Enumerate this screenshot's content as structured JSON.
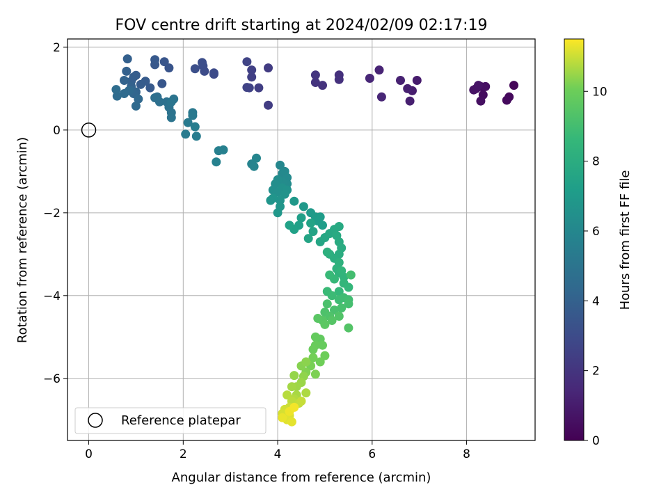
{
  "chart_data": {
    "type": "scatter",
    "title": "FOV centre drift starting at 2024/02/09 02:17:19",
    "xlabel": "Angular distance from reference (arcmin)",
    "ylabel": "Rotation from reference (arcmin)",
    "xlim": [
      -0.45,
      9.45
    ],
    "ylim": [
      -7.5,
      2.2
    ],
    "xticks": [
      0,
      2,
      4,
      6,
      8
    ],
    "yticks": [
      -6,
      -4,
      -2,
      0,
      2
    ],
    "xtick_labels": [
      "0",
      "2",
      "4",
      "6",
      "8"
    ],
    "ytick_labels": [
      "−6",
      "−4",
      "−2",
      "0",
      "2"
    ],
    "grid": true,
    "colormap": "viridis",
    "colorbar": {
      "label": "Hours from first FF file",
      "range": [
        0,
        11.5
      ],
      "ticks": [
        0,
        2,
        4,
        6,
        8,
        10
      ],
      "tick_labels": [
        "0",
        "2",
        "4",
        "6",
        "8",
        "10"
      ]
    },
    "legend": {
      "position": "lower-left",
      "entries": [
        "Reference platepar"
      ]
    },
    "reference_point": {
      "x": 0,
      "y": 0,
      "marker": "open-circle"
    },
    "points": [
      [
        9.0,
        1.08,
        0.2
      ],
      [
        8.9,
        0.8,
        0.3
      ],
      [
        8.85,
        0.72,
        0.35
      ],
      [
        8.3,
        1.05,
        0.4
      ],
      [
        8.35,
        0.85,
        0.45
      ],
      [
        8.3,
        0.7,
        0.5
      ],
      [
        8.4,
        1.05,
        0.55
      ],
      [
        8.2,
        1.0,
        0.6
      ],
      [
        8.15,
        0.97,
        0.65
      ],
      [
        8.25,
        1.08,
        0.7
      ],
      [
        6.95,
        1.2,
        1.0
      ],
      [
        6.85,
        0.95,
        1.05
      ],
      [
        6.8,
        0.7,
        1.1
      ],
      [
        6.75,
        1.0,
        1.15
      ],
      [
        6.6,
        1.2,
        1.2
      ],
      [
        6.15,
        1.45,
        1.3
      ],
      [
        6.2,
        0.8,
        1.35
      ],
      [
        5.95,
        1.25,
        1.4
      ],
      [
        5.3,
        1.33,
        1.8
      ],
      [
        5.3,
        1.22,
        1.85
      ],
      [
        4.95,
        1.08,
        1.9
      ],
      [
        4.8,
        1.15,
        1.95
      ],
      [
        4.8,
        1.33,
        2.0
      ],
      [
        3.8,
        1.5,
        2.3
      ],
      [
        3.8,
        0.6,
        2.35
      ],
      [
        3.6,
        1.02,
        2.4
      ],
      [
        3.45,
        1.28,
        2.45
      ],
      [
        3.45,
        1.45,
        2.5
      ],
      [
        3.4,
        1.02,
        2.55
      ],
      [
        3.35,
        1.03,
        2.6
      ],
      [
        3.35,
        1.65,
        2.65
      ],
      [
        2.65,
        1.35,
        2.9
      ],
      [
        2.65,
        1.38,
        2.95
      ],
      [
        2.45,
        1.42,
        3.0
      ],
      [
        2.42,
        1.55,
        3.05
      ],
      [
        2.4,
        1.63,
        3.1
      ],
      [
        2.25,
        1.48,
        3.15
      ],
      [
        1.7,
        1.5,
        3.4
      ],
      [
        1.6,
        1.65,
        3.45
      ],
      [
        1.55,
        1.12,
        3.5
      ],
      [
        1.4,
        1.58,
        3.55
      ],
      [
        1.4,
        1.7,
        3.6
      ],
      [
        1.3,
        1.02,
        3.65
      ],
      [
        1.2,
        1.18,
        3.7
      ],
      [
        1.1,
        1.1,
        3.75
      ],
      [
        1.0,
        1.32,
        3.8
      ],
      [
        0.95,
        1.28,
        3.85
      ],
      [
        0.9,
        1.18,
        3.9
      ],
      [
        0.82,
        1.72,
        3.95
      ],
      [
        0.8,
        1.42,
        4.0
      ],
      [
        0.9,
        1.05,
        4.05
      ],
      [
        0.75,
        1.2,
        4.1
      ],
      [
        1.0,
        0.92,
        4.15
      ],
      [
        0.95,
        0.88,
        4.2
      ],
      [
        0.9,
        0.95,
        4.25
      ],
      [
        1.05,
        0.75,
        4.35
      ],
      [
        1.0,
        0.58,
        4.4
      ],
      [
        0.85,
        0.95,
        4.45
      ],
      [
        0.75,
        0.88,
        4.5
      ],
      [
        0.6,
        0.82,
        4.55
      ],
      [
        0.58,
        0.98,
        4.6
      ],
      [
        1.45,
        0.8,
        4.65
      ],
      [
        1.4,
        0.78,
        4.7
      ],
      [
        1.5,
        0.68,
        4.75
      ],
      [
        1.65,
        0.68,
        4.8
      ],
      [
        1.7,
        0.55,
        4.85
      ],
      [
        1.75,
        0.42,
        4.9
      ],
      [
        1.75,
        0.3,
        4.95
      ],
      [
        1.8,
        0.75,
        5.0
      ],
      [
        1.75,
        0.68,
        5.05
      ],
      [
        2.2,
        0.42,
        5.2
      ],
      [
        2.2,
        0.35,
        5.25
      ],
      [
        2.1,
        0.18,
        5.3
      ],
      [
        2.05,
        -0.1,
        5.35
      ],
      [
        2.28,
        -0.15,
        5.4
      ],
      [
        2.25,
        0.08,
        5.45
      ],
      [
        2.75,
        -0.5,
        5.6
      ],
      [
        2.85,
        -0.48,
        5.65
      ],
      [
        2.7,
        -0.77,
        5.7
      ],
      [
        3.45,
        -0.82,
        5.8
      ],
      [
        3.5,
        -0.88,
        5.85
      ],
      [
        3.55,
        -0.68,
        5.9
      ],
      [
        4.05,
        -0.85,
        6.0
      ],
      [
        4.1,
        -1.05,
        6.05
      ],
      [
        4.15,
        -1.0,
        6.1
      ],
      [
        4.2,
        -1.15,
        6.15
      ],
      [
        4.2,
        -1.3,
        6.2
      ],
      [
        4.1,
        -1.25,
        6.25
      ],
      [
        4.0,
        -1.2,
        6.3
      ],
      [
        3.95,
        -1.3,
        6.35
      ],
      [
        3.9,
        -1.45,
        6.4
      ],
      [
        4.0,
        -1.5,
        6.45
      ],
      [
        4.1,
        -1.4,
        6.5
      ],
      [
        4.2,
        -1.45,
        6.55
      ],
      [
        4.15,
        -1.55,
        6.6
      ],
      [
        4.05,
        -1.7,
        6.65
      ],
      [
        3.9,
        -1.65,
        6.7
      ],
      [
        3.85,
        -1.7,
        6.75
      ],
      [
        4.05,
        -1.85,
        6.8
      ],
      [
        4.0,
        -2.0,
        6.85
      ],
      [
        4.35,
        -1.72,
        6.9
      ],
      [
        4.55,
        -1.85,
        6.95
      ],
      [
        4.7,
        -2.0,
        7.0
      ],
      [
        4.8,
        -2.1,
        7.05
      ],
      [
        4.9,
        -2.1,
        7.1
      ],
      [
        4.85,
        -2.2,
        7.15
      ],
      [
        4.95,
        -2.3,
        7.2
      ],
      [
        4.5,
        -2.12,
        7.25
      ],
      [
        4.45,
        -2.3,
        7.3
      ],
      [
        4.35,
        -2.4,
        7.35
      ],
      [
        4.25,
        -2.3,
        7.4
      ],
      [
        4.7,
        -2.25,
        7.45
      ],
      [
        4.75,
        -2.45,
        7.5
      ],
      [
        4.65,
        -2.62,
        7.55
      ],
      [
        4.9,
        -2.7,
        7.6
      ],
      [
        5.0,
        -2.6,
        7.65
      ],
      [
        5.1,
        -2.5,
        7.7
      ],
      [
        5.2,
        -2.4,
        7.75
      ],
      [
        5.3,
        -2.33,
        7.8
      ],
      [
        5.25,
        -2.55,
        7.85
      ],
      [
        5.3,
        -2.7,
        7.9
      ],
      [
        5.35,
        -2.85,
        7.95
      ],
      [
        5.3,
        -3.0,
        8.0
      ],
      [
        5.2,
        -3.1,
        8.05
      ],
      [
        5.1,
        -3.0,
        8.1
      ],
      [
        5.05,
        -2.95,
        8.15
      ],
      [
        5.3,
        -3.2,
        8.25
      ],
      [
        5.25,
        -3.35,
        8.3
      ],
      [
        5.3,
        -3.45,
        8.35
      ],
      [
        5.4,
        -3.55,
        8.4
      ],
      [
        5.35,
        -3.4,
        8.45
      ],
      [
        5.4,
        -3.7,
        8.5
      ],
      [
        5.5,
        -3.8,
        8.55
      ],
      [
        5.3,
        -3.9,
        8.6
      ],
      [
        5.2,
        -3.6,
        8.65
      ],
      [
        5.1,
        -3.5,
        8.7
      ],
      [
        5.05,
        -3.9,
        8.75
      ],
      [
        5.15,
        -4.0,
        8.8
      ],
      [
        5.3,
        -4.1,
        8.85
      ],
      [
        5.4,
        -4.05,
        8.9
      ],
      [
        5.5,
        -4.1,
        8.95
      ],
      [
        5.55,
        -3.5,
        9.0
      ],
      [
        5.5,
        -4.2,
        9.05
      ],
      [
        5.35,
        -4.3,
        9.1
      ],
      [
        5.2,
        -4.35,
        9.15
      ],
      [
        5.05,
        -4.2,
        9.2
      ],
      [
        5.0,
        -4.4,
        9.25
      ],
      [
        5.1,
        -4.5,
        9.3
      ],
      [
        5.3,
        -4.5,
        9.35
      ],
      [
        5.5,
        -4.78,
        9.4
      ],
      [
        5.15,
        -4.6,
        9.45
      ],
      [
        4.95,
        -4.6,
        9.5
      ],
      [
        4.85,
        -4.55,
        9.55
      ],
      [
        5.0,
        -4.7,
        9.6
      ],
      [
        4.9,
        -5.05,
        9.75
      ],
      [
        4.8,
        -5.0,
        9.8
      ],
      [
        4.95,
        -5.2,
        9.85
      ],
      [
        4.8,
        -5.2,
        9.9
      ],
      [
        4.75,
        -5.3,
        9.95
      ],
      [
        5.0,
        -5.45,
        10.0
      ],
      [
        4.9,
        -5.6,
        10.05
      ],
      [
        4.75,
        -5.5,
        10.1
      ],
      [
        4.7,
        -5.7,
        10.15
      ],
      [
        4.8,
        -5.9,
        10.2
      ],
      [
        4.6,
        -5.85,
        10.25
      ],
      [
        4.5,
        -5.7,
        10.3
      ],
      [
        4.6,
        -5.6,
        10.35
      ],
      [
        4.55,
        -5.95,
        10.4
      ],
      [
        4.35,
        -5.93,
        10.45
      ],
      [
        4.5,
        -6.1,
        10.5
      ],
      [
        4.4,
        -6.2,
        10.55
      ],
      [
        4.3,
        -6.2,
        10.6
      ],
      [
        4.4,
        -6.4,
        10.65
      ],
      [
        4.6,
        -6.35,
        10.7
      ],
      [
        4.35,
        -6.5,
        10.75
      ],
      [
        4.2,
        -6.4,
        10.8
      ],
      [
        4.3,
        -6.55,
        10.85
      ],
      [
        4.45,
        -6.6,
        10.9
      ],
      [
        4.5,
        -6.55,
        10.95
      ],
      [
        4.25,
        -6.7,
        11.0
      ],
      [
        4.15,
        -6.75,
        11.05
      ],
      [
        4.1,
        -6.85,
        11.1
      ],
      [
        4.25,
        -6.9,
        11.15
      ],
      [
        4.2,
        -7.0,
        11.2
      ],
      [
        4.3,
        -7.05,
        11.25
      ],
      [
        4.1,
        -6.95,
        11.3
      ],
      [
        4.25,
        -6.8,
        11.35
      ],
      [
        4.35,
        -6.7,
        11.4
      ]
    ]
  }
}
